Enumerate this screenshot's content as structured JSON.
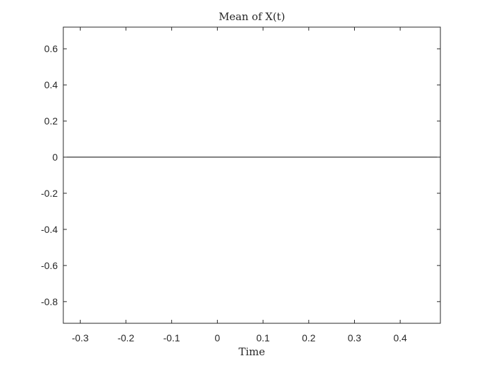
{
  "chart_data": {
    "type": "line",
    "title": "Mean of X(t)",
    "xlabel": "Time",
    "ylabel": "",
    "xlim": [
      -0.337,
      0.488
    ],
    "ylim": [
      -0.92,
      0.72
    ],
    "xticks": [
      -0.3,
      -0.2,
      -0.1,
      0,
      0.1,
      0.2,
      0.3,
      0.4
    ],
    "xtick_labels": [
      "-0.3",
      "-0.2",
      "-0.1",
      "0",
      "0.1",
      "0.2",
      "0.3",
      "0.4"
    ],
    "yticks": [
      0.6,
      0.4,
      0.2,
      0,
      -0.2,
      -0.4,
      -0.6,
      -0.8
    ],
    "ytick_labels": [
      "0.6",
      "0.4",
      "0.2",
      "0",
      "-0.2",
      "-0.4",
      "-0.6",
      "-0.8"
    ],
    "grid": false,
    "series": [
      {
        "x": [
          -0.337,
          0.488
        ],
        "y": [
          0,
          0
        ],
        "color": "#000000"
      }
    ]
  }
}
